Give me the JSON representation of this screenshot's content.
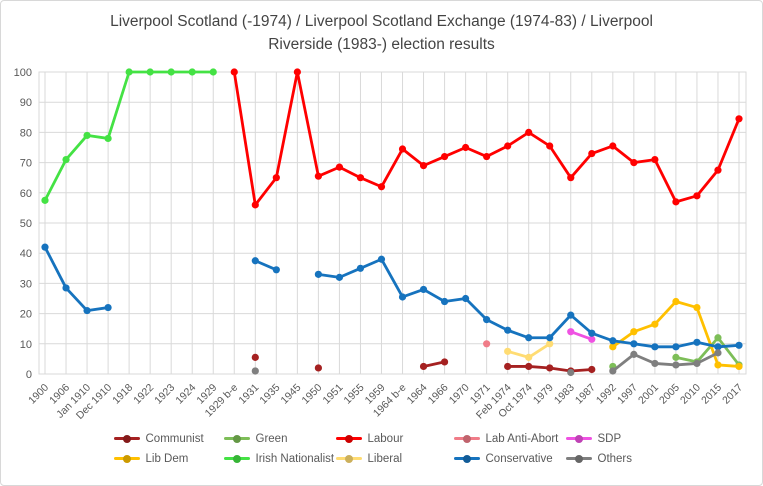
{
  "title": "Liverpool Scotland (-1974) / Liverpool Scotland Exchange (1974-83) / Liverpool Riverside (1983-) election results",
  "colors": {
    "text": "#595959",
    "grid": "#d9d9d9",
    "title_text": "#444444"
  },
  "legend": {
    "items": [
      "Communist",
      "Green",
      "Labour",
      "Lab Anti-Abort",
      "SDP",
      "Lib Dem",
      "Irish Nationalist",
      "Liberal",
      "Conservative",
      "Others"
    ]
  },
  "chart_data": {
    "type": "line",
    "title": "Liverpool Scotland (-1974) / Liverpool Scotland Exchange (1974-83) / Liverpool Riverside (1983-) election results",
    "xlabel": "",
    "ylabel": "",
    "ylim": [
      0,
      100
    ],
    "yticks": [
      0,
      10,
      20,
      30,
      40,
      50,
      60,
      70,
      80,
      90,
      100
    ],
    "grid": "both",
    "legend_position": "bottom",
    "categories": [
      "1900",
      "1906",
      "Jan 1910",
      "Dec 1910",
      "1918",
      "1922",
      "1923",
      "1924",
      "1929",
      "1929 b-e",
      "1931",
      "1935",
      "1945",
      "1950",
      "1951",
      "1955",
      "1959",
      "1964 b-e",
      "1964",
      "1966",
      "1970",
      "1971",
      "Feb 1974",
      "Oct 1974",
      "1979",
      "1983",
      "1987",
      "1992",
      "1997",
      "2001",
      "2005",
      "2010",
      "2015",
      "2017"
    ],
    "series": [
      {
        "name": "Communist",
        "color": "#a52121",
        "values": [
          null,
          null,
          null,
          null,
          null,
          null,
          null,
          null,
          null,
          null,
          5.5,
          null,
          null,
          2,
          null,
          null,
          null,
          null,
          2.5,
          4,
          null,
          null,
          2.5,
          2.5,
          2,
          1,
          1.5,
          null,
          null,
          null,
          null,
          null,
          null,
          null
        ]
      },
      {
        "name": "Green",
        "color": "#7dbe58",
        "values": [
          null,
          null,
          null,
          null,
          null,
          null,
          null,
          null,
          null,
          null,
          null,
          null,
          null,
          null,
          null,
          null,
          null,
          null,
          null,
          null,
          null,
          null,
          null,
          null,
          null,
          null,
          null,
          2.5,
          null,
          null,
          5.5,
          4,
          12,
          3
        ]
      },
      {
        "name": "Labour",
        "color": "#ff0000",
        "values": [
          null,
          null,
          null,
          null,
          null,
          null,
          null,
          null,
          null,
          100,
          56,
          65,
          100,
          65.5,
          68.5,
          65,
          62,
          74.5,
          69,
          72,
          75,
          72,
          75.5,
          80,
          75.5,
          65,
          73,
          75.5,
          70,
          71,
          57,
          59,
          67.5,
          84.5
        ]
      },
      {
        "name": "Lab Anti-Abort",
        "color": "#f07c88",
        "values": [
          null,
          null,
          null,
          null,
          null,
          null,
          null,
          null,
          null,
          null,
          null,
          null,
          null,
          null,
          null,
          null,
          null,
          null,
          null,
          null,
          null,
          10,
          null,
          null,
          null,
          null,
          null,
          null,
          null,
          null,
          null,
          null,
          null,
          null
        ]
      },
      {
        "name": "SDP",
        "color": "#ef52e2",
        "values": [
          null,
          null,
          null,
          null,
          null,
          null,
          null,
          null,
          null,
          null,
          null,
          null,
          null,
          null,
          null,
          null,
          null,
          null,
          null,
          null,
          null,
          null,
          null,
          null,
          null,
          14,
          11.5,
          null,
          null,
          null,
          null,
          null,
          null,
          null
        ]
      },
      {
        "name": "Lib Dem",
        "color": "#ffc000",
        "values": [
          null,
          null,
          null,
          null,
          null,
          null,
          null,
          null,
          null,
          null,
          null,
          null,
          null,
          null,
          null,
          null,
          null,
          null,
          null,
          null,
          null,
          null,
          null,
          null,
          null,
          null,
          null,
          9,
          14,
          16.5,
          24,
          22,
          3,
          2.5
        ]
      },
      {
        "name": "Irish Nationalist",
        "color": "#44e244",
        "values": [
          57.5,
          71,
          79,
          78,
          100,
          100,
          100,
          100,
          100,
          null,
          null,
          null,
          null,
          null,
          null,
          null,
          null,
          null,
          null,
          null,
          null,
          null,
          null,
          null,
          null,
          null,
          null,
          null,
          null,
          null,
          null,
          null,
          null,
          null
        ]
      },
      {
        "name": "Liberal",
        "color": "#ffdc73",
        "values": [
          null,
          null,
          null,
          null,
          null,
          null,
          null,
          null,
          null,
          null,
          null,
          null,
          null,
          null,
          null,
          null,
          null,
          null,
          null,
          null,
          null,
          null,
          7.5,
          5.5,
          10,
          null,
          null,
          null,
          null,
          null,
          null,
          null,
          null,
          null
        ]
      },
      {
        "name": "Conservative",
        "color": "#1673be",
        "values": [
          42,
          28.5,
          21,
          22,
          null,
          null,
          null,
          null,
          null,
          null,
          37.5,
          34.5,
          null,
          33,
          32,
          35,
          38,
          25.5,
          28,
          24,
          25,
          18,
          14.5,
          12,
          12,
          19.5,
          13.5,
          11,
          10,
          9,
          9,
          10.5,
          9,
          9.5
        ]
      },
      {
        "name": "Others",
        "color": "#7f7f7f",
        "values": [
          null,
          null,
          null,
          null,
          null,
          null,
          null,
          null,
          null,
          null,
          1,
          null,
          null,
          null,
          null,
          null,
          null,
          null,
          null,
          null,
          null,
          null,
          null,
          null,
          null,
          0.5,
          null,
          1,
          6.5,
          3.5,
          3,
          3.5,
          7,
          null
        ]
      }
    ]
  }
}
